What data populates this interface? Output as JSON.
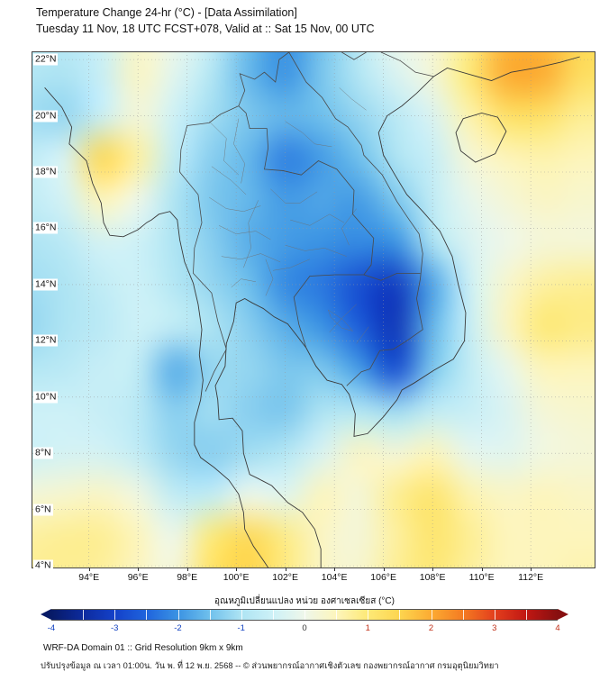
{
  "header": {
    "title": "Temperature Change 24-hr (°C) - [Data Assimilation]",
    "subtitle": "Tuesday 11 Nov, 18 UTC FCST+078, Valid at :: Sat 15 Nov, 00 UTC"
  },
  "chart_data": {
    "type": "heatmap",
    "title": "Temperature Change 24-hr (°C) - [Data Assimilation]",
    "subtitle": "Tuesday 11 Nov, 18 UTC FCST+078, Valid at :: Sat 15 Nov, 00 UTC",
    "units": "°C",
    "lon_range": [
      91.7,
      114.6
    ],
    "lat_range": [
      3.94,
      22.26
    ],
    "lon_ticks": [
      {
        "v": 94,
        "label": "94°E"
      },
      {
        "v": 96,
        "label": "96°E"
      },
      {
        "v": 98,
        "label": "98°E"
      },
      {
        "v": 100,
        "label": "100°E"
      },
      {
        "v": 102,
        "label": "102°E"
      },
      {
        "v": 104,
        "label": "104°E"
      },
      {
        "v": 106,
        "label": "106°E"
      },
      {
        "v": 108,
        "label": "108°E"
      },
      {
        "v": 110,
        "label": "110°E"
      },
      {
        "v": 112,
        "label": "112°E"
      }
    ],
    "lat_ticks": [
      {
        "v": 22,
        "label": "22°N"
      },
      {
        "v": 20,
        "label": "20°N"
      },
      {
        "v": 18,
        "label": "18°N"
      },
      {
        "v": 16,
        "label": "16°N"
      },
      {
        "v": 14,
        "label": "14°N"
      },
      {
        "v": 12,
        "label": "12°N"
      },
      {
        "v": 10,
        "label": "10°N"
      },
      {
        "v": 8,
        "label": "8°N"
      },
      {
        "v": 6,
        "label": "6°N"
      },
      {
        "v": 4,
        "label": "4°N"
      }
    ],
    "grid": {
      "comment_free": "estimated 24-hr temperature change field (°C), rows = lats, cols = lons",
      "lons": [
        91.5,
        93,
        94.5,
        96,
        97.5,
        99,
        100.5,
        102,
        103.5,
        105,
        106.5,
        108,
        109.5,
        111,
        112.5,
        114
      ],
      "lats": [
        23,
        21.5,
        20,
        18.5,
        17,
        15.5,
        14,
        12.5,
        11,
        9.5,
        8,
        6.5,
        5,
        3.5
      ],
      "values": [
        [
          -0.8,
          -0.8,
          -0.5,
          0.3,
          0.0,
          -0.6,
          -1.5,
          -2.0,
          -1.5,
          -0.8,
          0.0,
          0.2,
          0.8,
          1.8,
          1.8,
          1.4
        ],
        [
          -0.9,
          -1.0,
          -0.6,
          0.4,
          -0.2,
          -0.9,
          -1.6,
          -2.0,
          -1.4,
          -0.9,
          -0.3,
          0.2,
          1.0,
          2.0,
          2.0,
          1.3
        ],
        [
          -1.1,
          -1.2,
          -0.6,
          0.2,
          -0.5,
          -1.1,
          -1.4,
          -1.6,
          -1.5,
          -1.2,
          -0.8,
          -0.3,
          0.6,
          1.2,
          1.2,
          0.8
        ],
        [
          -0.7,
          -0.3,
          1.4,
          0.7,
          -0.7,
          -1.3,
          -1.6,
          -2.2,
          -1.9,
          -1.5,
          -1.0,
          -0.6,
          0.2,
          0.5,
          0.6,
          0.5
        ],
        [
          -0.7,
          -0.4,
          0.5,
          0.0,
          -1.0,
          -1.4,
          -1.6,
          -1.9,
          -1.8,
          -1.9,
          -1.4,
          -0.7,
          -0.1,
          0.2,
          0.4,
          0.3
        ],
        [
          -1.0,
          -0.8,
          -0.4,
          -0.5,
          -1.0,
          -1.3,
          -1.7,
          -1.9,
          -2.0,
          -2.1,
          -2.0,
          -1.0,
          -0.3,
          0.0,
          0.2,
          0.2
        ],
        [
          -1.1,
          -1.0,
          -0.7,
          -0.5,
          -0.9,
          -1.2,
          -1.5,
          -2.1,
          -2.3,
          -2.8,
          -3.1,
          -1.8,
          -0.5,
          0.3,
          0.7,
          0.8
        ],
        [
          -1.2,
          -1.0,
          -0.8,
          -0.5,
          -0.7,
          -1.0,
          -1.3,
          -1.7,
          -2.0,
          -2.6,
          -3.2,
          -1.6,
          -0.6,
          0.4,
          1.0,
          0.9
        ],
        [
          -0.9,
          -0.8,
          -0.6,
          -0.7,
          -1.7,
          -1.2,
          -1.2,
          -1.4,
          -1.4,
          -1.9,
          -2.8,
          -1.4,
          -0.7,
          -0.1,
          0.5,
          0.5
        ],
        [
          -0.5,
          -0.5,
          -0.6,
          -0.8,
          -1.3,
          -1.1,
          -1.3,
          -1.4,
          -1.0,
          -0.9,
          -1.1,
          -0.7,
          -0.6,
          -0.3,
          0.2,
          0.3
        ],
        [
          -0.5,
          -0.4,
          -0.4,
          -0.7,
          -1.2,
          -1.3,
          -1.1,
          -0.9,
          -0.3,
          0.4,
          0.2,
          0.5,
          -0.1,
          -0.2,
          0.1,
          0.2
        ],
        [
          0.2,
          0.3,
          0.4,
          0.1,
          -0.7,
          -0.7,
          0.0,
          -0.2,
          0.5,
          0.2,
          0.8,
          1.1,
          0.6,
          0.4,
          0.5,
          0.4
        ],
        [
          0.7,
          0.8,
          0.8,
          0.5,
          0.0,
          1.0,
          1.4,
          0.9,
          0.4,
          0.2,
          0.7,
          1.1,
          0.8,
          0.5,
          0.5,
          0.5
        ],
        [
          0.8,
          0.8,
          0.7,
          0.4,
          0.2,
          1.2,
          1.5,
          0.9,
          0.4,
          0.3,
          0.8,
          1.0,
          0.7,
          0.5,
          0.5,
          0.6
        ]
      ]
    },
    "colorbar": {
      "label": "อุณหภูมิเปลี่ยนแปลง หน่วย องศาเซลเซียส (°C)",
      "min": -4,
      "max": 4,
      "ticks": [
        {
          "v": -4,
          "label": "-4"
        },
        {
          "v": -3,
          "label": "-3"
        },
        {
          "v": -2,
          "label": "-2"
        },
        {
          "v": -1,
          "label": "-1"
        },
        {
          "v": 0,
          "label": "0"
        },
        {
          "v": 1,
          "label": "1"
        },
        {
          "v": 2,
          "label": "2"
        },
        {
          "v": 3,
          "label": "3"
        },
        {
          "v": 4,
          "label": "4"
        }
      ],
      "stops": [
        {
          "v": -4,
          "c": "#071a66"
        },
        {
          "v": -3.5,
          "c": "#0d2b9e"
        },
        {
          "v": -3,
          "c": "#1441c9"
        },
        {
          "v": -2.5,
          "c": "#1f64dd"
        },
        {
          "v": -2,
          "c": "#3b93e3"
        },
        {
          "v": -1.5,
          "c": "#6fc0ec"
        },
        {
          "v": -1,
          "c": "#aee4f3"
        },
        {
          "v": -0.5,
          "c": "#cdf1f7"
        },
        {
          "v": 0,
          "c": "#eef7ea"
        },
        {
          "v": 0.5,
          "c": "#fdf5bc"
        },
        {
          "v": 1,
          "c": "#fde977"
        },
        {
          "v": 1.5,
          "c": "#fdd54f"
        },
        {
          "v": 2,
          "c": "#fcab32"
        },
        {
          "v": 2.5,
          "c": "#f47b22"
        },
        {
          "v": 3,
          "c": "#e33f1d"
        },
        {
          "v": 3.5,
          "c": "#c11713"
        },
        {
          "v": 4,
          "c": "#870f10"
        }
      ]
    }
  },
  "footer": {
    "line1": "WRF-DA Domain 01 :: Grid Resolution 9km x 9km",
    "line2": "ปรับปรุงข้อมูล ณ เวลา 01:00น. วัน พ. ที่ 12 พ.ย. 2568 -- © ส่วนพยากรณ์อากาศเชิงตัวเลข กองพยากรณ์อากาศ กรมอุตุนิยมวิทยา"
  }
}
